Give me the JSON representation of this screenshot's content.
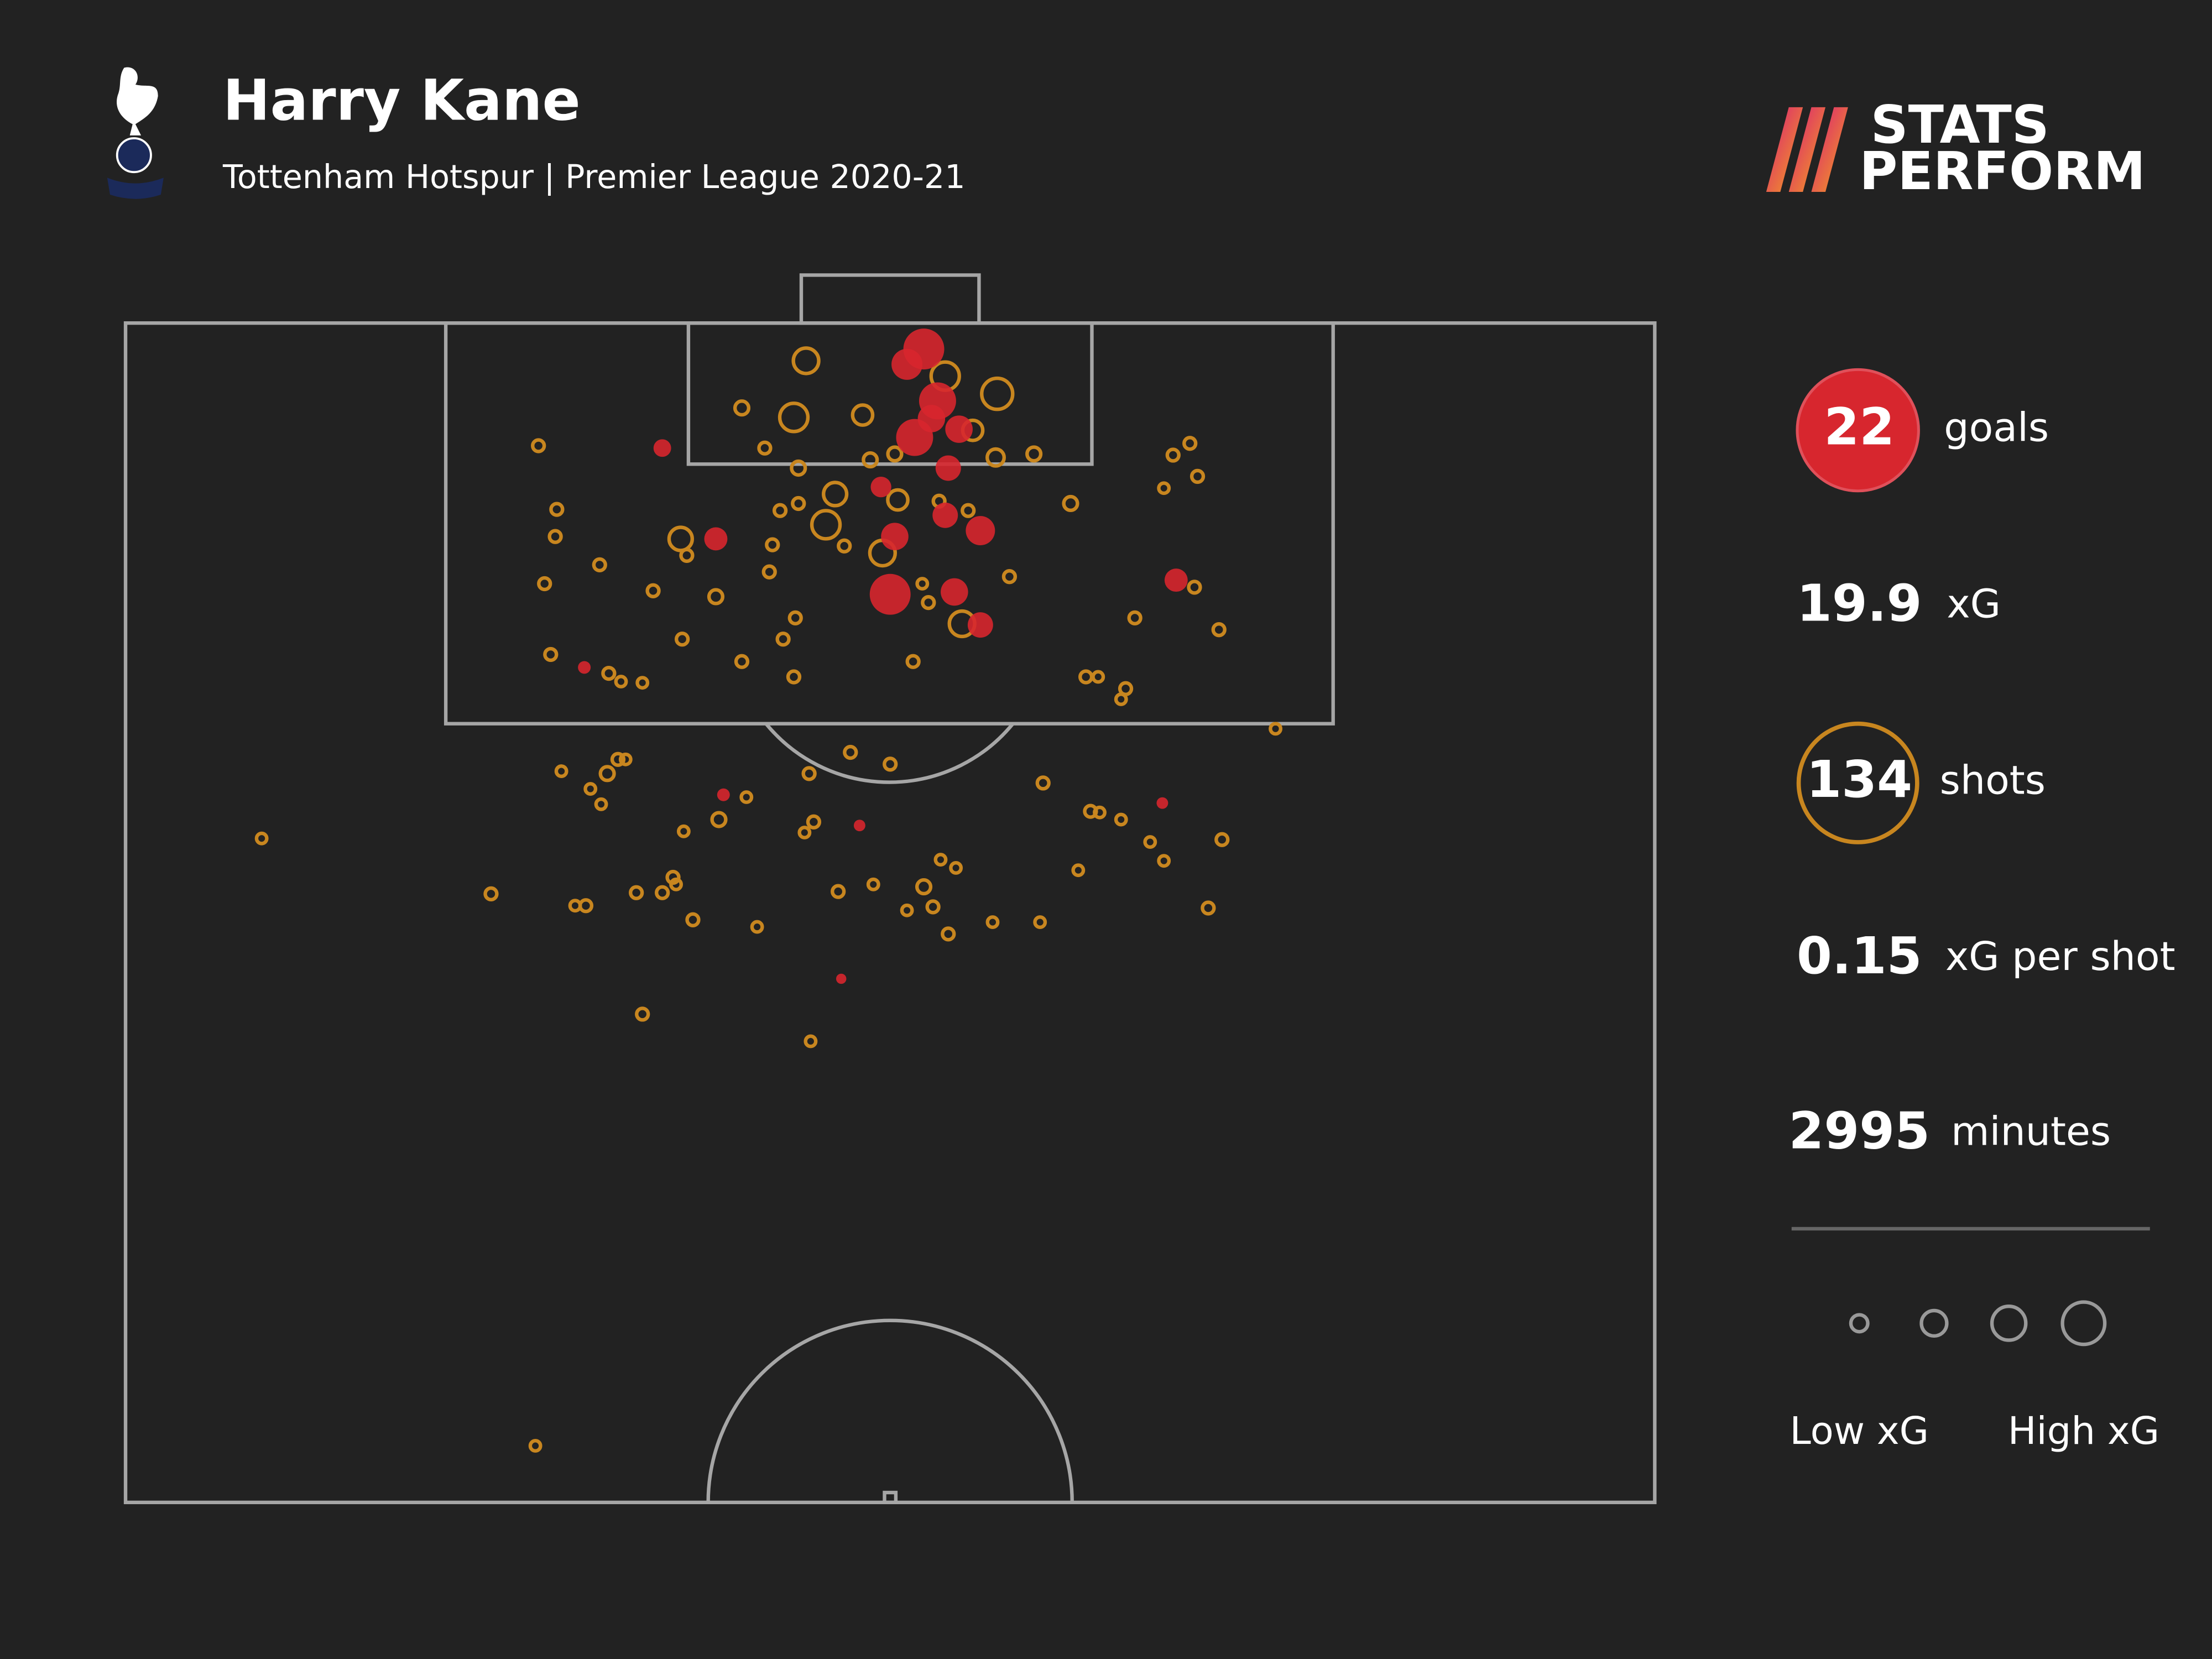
{
  "header": {
    "title": "Harry Kane",
    "subtitle": "Tottenham Hotspur | Premier League 2020-21"
  },
  "brand": {
    "line1": "STATS",
    "line2": "PERFORM"
  },
  "chart_data": {
    "type": "scatter",
    "xlim": [
      0,
      100
    ],
    "ylim": [
      0,
      100
    ],
    "series": [
      {
        "color": "#c8861f",
        "filled": false,
        "x": [
          44.5,
          53.6,
          57,
          43.7,
          40.3,
          48.2,
          55.4,
          56.9,
          59.4,
          41.8,
          48.7,
          50.3,
          44,
          46.4,
          45.8,
          50.5,
          53.2,
          55.1,
          42.8,
          44,
          61.8,
          47,
          49.5,
          36.3,
          36.7,
          42.3,
          42.1,
          57.8,
          52.1,
          52.5,
          54.7,
          69.9,
          43.8,
          43,
          40.3,
          43.7,
          51.5,
          38.6,
          34.5,
          36.4,
          31,
          27.4,
          28.1,
          28.2,
          27,
          27.8,
          31.6,
          32.4,
          33.8,
          68.5,
          69.6,
          70.1,
          67.9,
          71.5,
          66,
          62.8,
          63.6,
          65.4,
          65.1,
          75.2,
          47.4,
          44.7,
          50,
          28.5,
          31.5,
          32.2,
          32.7,
          30.4,
          31.1,
          40.6,
          38.8,
          36.5,
          45,
          44.4,
          60,
          63.1,
          63.7,
          65.1,
          71.7,
          67,
          67.9,
          62.3,
          8.9,
          23.9,
          29.4,
          30.1,
          33.4,
          35.1,
          35.8,
          36,
          37.1,
          41.3,
          46.6,
          48.9,
          52.2,
          53.3,
          54.3,
          51.1,
          52.8,
          53.8,
          56.7,
          59.8,
          70.8,
          33.8,
          44.8,
          26.8
        ],
        "y": [
          3.2,
          4.5,
          6,
          8,
          7.2,
          7.8,
          9.1,
          11.4,
          11.1,
          10.6,
          11.6,
          11.1,
          12.3,
          14.5,
          17.1,
          15,
          15.1,
          15.9,
          15.9,
          15.3,
          15.3,
          18.9,
          19.5,
          18.3,
          19.7,
          18.8,
          21.1,
          21.5,
          22.1,
          23.7,
          25.5,
          22.4,
          25,
          26.8,
          28.7,
          30,
          28.7,
          23.2,
          22.7,
          26.8,
          20.5,
          22.1,
          18.1,
          15.8,
          10.4,
          28.1,
          29.7,
          30.4,
          30.5,
          11.2,
          10.2,
          13,
          14,
          26,
          25,
          30,
          30,
          31,
          31.9,
          34.4,
          36.4,
          38.2,
          37.4,
          38,
          38.2,
          37,
          37,
          39.5,
          40.8,
          40.2,
          42.1,
          43.1,
          42.3,
          43.2,
          39,
          41.4,
          41.5,
          42.1,
          43.8,
          44,
          45.6,
          46.4,
          43.7,
          48.4,
          49.4,
          49.4,
          48.3,
          48.3,
          47,
          47.6,
          50.6,
          51.2,
          48.2,
          47.6,
          47.8,
          45.5,
          46.2,
          49.8,
          49.5,
          51.8,
          50.8,
          50.8,
          49.6,
          58.6,
          60.9,
          95.2
        ],
        "xg": [
          0.25,
          0.32,
          0.4,
          0.32,
          0.05,
          0.14,
          0.14,
          0.09,
          0.05,
          0.03,
          0.05,
          0.05,
          0.05,
          0.2,
          0.32,
          0.14,
          0.03,
          0.03,
          0.03,
          0.03,
          0.05,
          0.03,
          0.25,
          0.2,
          0.03,
          0.03,
          0.03,
          0.03,
          0.02,
          0.03,
          0.25,
          0.03,
          0.03,
          0.03,
          0.03,
          0.03,
          0.03,
          0.05,
          0.03,
          0.03,
          0.03,
          0.03,
          0.03,
          0.03,
          0.03,
          0.03,
          0.03,
          0.02,
          0.02,
          0.03,
          0.03,
          0.03,
          0.02,
          0.03,
          0.03,
          0.03,
          0.02,
          0.03,
          0.02,
          0.02,
          0.03,
          0.03,
          0.03,
          0.02,
          0.05,
          0.03,
          0.02,
          0.02,
          0.02,
          0.02,
          0.05,
          0.02,
          0.03,
          0.02,
          0.03,
          0.03,
          0.02,
          0.02,
          0.03,
          0.02,
          0.02,
          0.02,
          0.02,
          0.03,
          0.02,
          0.03,
          0.03,
          0.03,
          0.03,
          0.02,
          0.03,
          0.02,
          0.03,
          0.02,
          0.05,
          0.02,
          0.02,
          0.02,
          0.03,
          0.03,
          0.02,
          0.02,
          0.03,
          0.03,
          0.02,
          0.02
        ]
      },
      {
        "color": "#d7262e",
        "filled": true,
        "x": [
          52.2,
          53.1,
          51.6,
          54.5,
          53.8,
          53.6,
          55.9,
          50.3,
          50,
          54.2,
          55.9,
          38.6,
          35.1,
          68.7,
          30,
          39.1,
          48,
          67.8,
          46.8,
          51.1,
          52.7,
          49.4
        ],
        "y": [
          2.2,
          6.6,
          9.7,
          9,
          12.3,
          16.3,
          17.6,
          18.1,
          23,
          22.8,
          25.6,
          18.3,
          10.6,
          21.8,
          29.2,
          40,
          42.6,
          40.7,
          55.6,
          3.5,
          8.1,
          13.9
        ],
        "xg": [
          0.75,
          0.6,
          0.6,
          0.3,
          0.25,
          0.25,
          0.35,
          0.3,
          0.75,
          0.3,
          0.25,
          0.2,
          0.1,
          0.2,
          0.04,
          0.04,
          0.03,
          0.03,
          0.02,
          0.4,
          0.3,
          0.15
        ]
      }
    ]
  },
  "stats": [
    {
      "value": 22,
      "label": "goals"
    },
    {
      "value": 19.9,
      "label": "xG"
    },
    {
      "value": 134,
      "label": "shots"
    },
    {
      "value": 0.15,
      "label": "xG per shot"
    },
    {
      "value": 2995,
      "label": "minutes"
    }
  ],
  "legend": {
    "xg": [
      0.09,
      0.25,
      0.49,
      0.81
    ],
    "low_label": "Low xG",
    "high_label": "High xG"
  }
}
